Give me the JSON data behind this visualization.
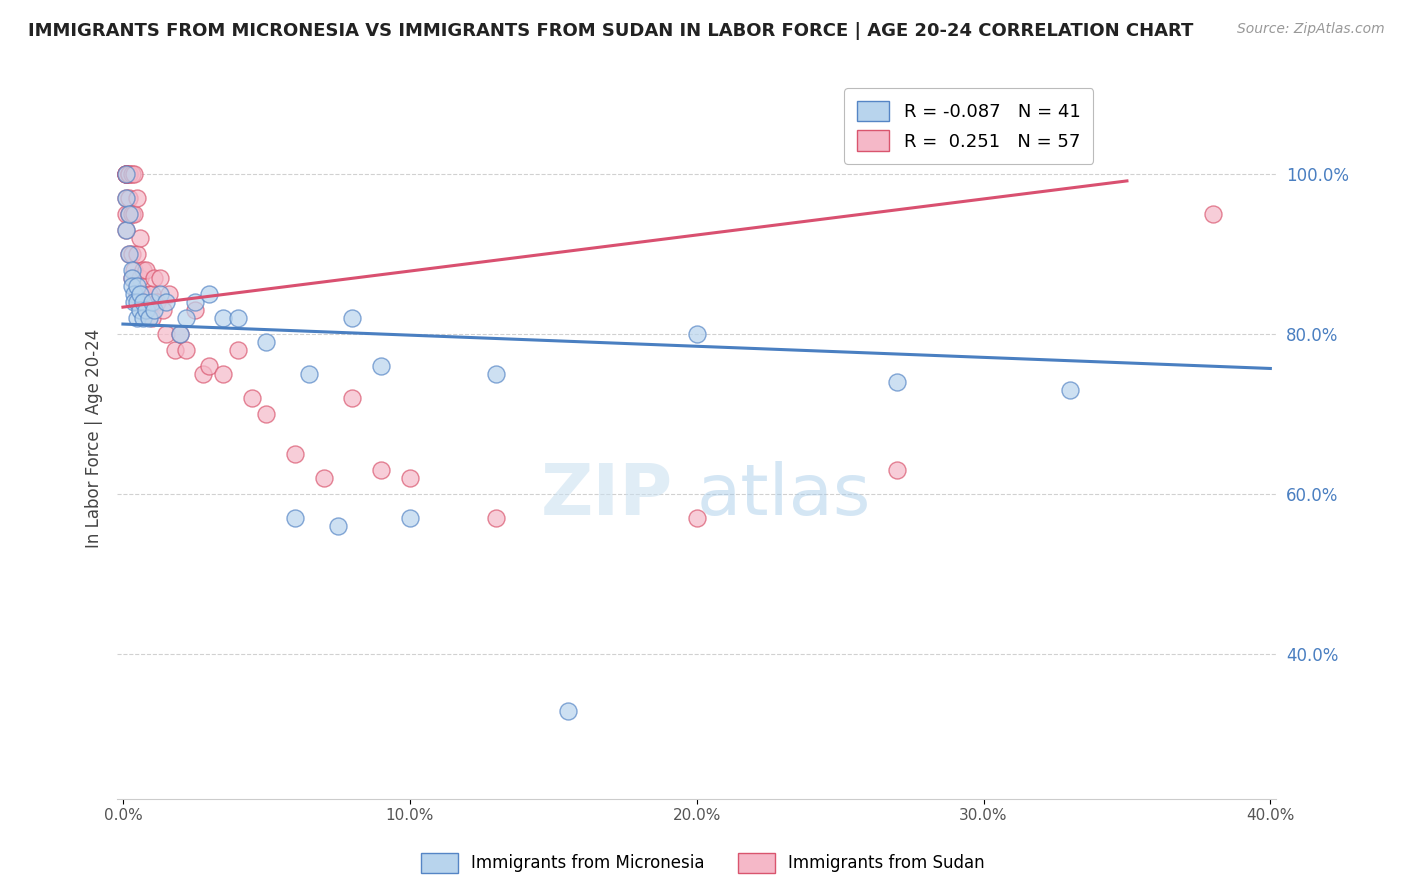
{
  "title": "IMMIGRANTS FROM MICRONESIA VS IMMIGRANTS FROM SUDAN IN LABOR FORCE | AGE 20-24 CORRELATION CHART",
  "source": "Source: ZipAtlas.com",
  "ylabel": "In Labor Force | Age 20-24",
  "xlim": [
    -0.002,
    0.402
  ],
  "ylim": [
    0.22,
    1.12
  ],
  "xtick_labels": [
    "0.0%",
    "10.0%",
    "20.0%",
    "30.0%",
    "40.0%"
  ],
  "xtick_vals": [
    0.0,
    0.1,
    0.2,
    0.3,
    0.4
  ],
  "ytick_labels": [
    "40.0%",
    "60.0%",
    "80.0%",
    "100.0%"
  ],
  "ytick_vals": [
    0.4,
    0.6,
    0.8,
    1.0
  ],
  "micronesia_color": "#b8d4ed",
  "sudan_color": "#f5b8c8",
  "micronesia_edge": "#5585c5",
  "sudan_edge": "#d9556e",
  "trend_micronesia_color": "#4a7fc1",
  "trend_sudan_color": "#d95070",
  "R_micronesia": -0.087,
  "N_micronesia": 41,
  "R_sudan": 0.251,
  "N_sudan": 57,
  "legend_label_micronesia": "Immigrants from Micronesia",
  "legend_label_sudan": "Immigrants from Sudan",
  "watermark_zip": "ZIP",
  "watermark_atlas": "atlas",
  "micronesia_x": [
    0.001,
    0.001,
    0.001,
    0.002,
    0.002,
    0.003,
    0.003,
    0.003,
    0.004,
    0.004,
    0.005,
    0.005,
    0.005,
    0.006,
    0.006,
    0.007,
    0.007,
    0.008,
    0.009,
    0.01,
    0.011,
    0.013,
    0.015,
    0.02,
    0.022,
    0.025,
    0.03,
    0.035,
    0.04,
    0.05,
    0.06,
    0.065,
    0.075,
    0.08,
    0.09,
    0.1,
    0.13,
    0.155,
    0.2,
    0.27,
    0.33
  ],
  "micronesia_y": [
    1.0,
    0.97,
    0.93,
    0.95,
    0.9,
    0.88,
    0.87,
    0.86,
    0.85,
    0.84,
    0.86,
    0.84,
    0.82,
    0.85,
    0.83,
    0.84,
    0.82,
    0.83,
    0.82,
    0.84,
    0.83,
    0.85,
    0.84,
    0.8,
    0.82,
    0.84,
    0.85,
    0.82,
    0.82,
    0.79,
    0.57,
    0.75,
    0.56,
    0.82,
    0.76,
    0.57,
    0.75,
    0.33,
    0.8,
    0.74,
    0.73
  ],
  "sudan_x": [
    0.001,
    0.001,
    0.001,
    0.001,
    0.001,
    0.001,
    0.001,
    0.001,
    0.002,
    0.002,
    0.002,
    0.002,
    0.002,
    0.003,
    0.003,
    0.003,
    0.003,
    0.004,
    0.004,
    0.004,
    0.005,
    0.005,
    0.005,
    0.006,
    0.006,
    0.007,
    0.007,
    0.008,
    0.008,
    0.009,
    0.01,
    0.01,
    0.011,
    0.012,
    0.013,
    0.014,
    0.015,
    0.016,
    0.018,
    0.02,
    0.022,
    0.025,
    0.028,
    0.03,
    0.035,
    0.04,
    0.045,
    0.05,
    0.06,
    0.07,
    0.08,
    0.09,
    0.1,
    0.13,
    0.2,
    0.27,
    0.38
  ],
  "sudan_y": [
    1.0,
    1.0,
    1.0,
    1.0,
    1.0,
    0.97,
    0.95,
    0.93,
    1.0,
    1.0,
    0.97,
    0.95,
    0.9,
    1.0,
    0.95,
    0.9,
    0.87,
    1.0,
    0.95,
    0.88,
    0.97,
    0.9,
    0.85,
    0.92,
    0.87,
    0.88,
    0.85,
    0.88,
    0.83,
    0.85,
    0.85,
    0.82,
    0.87,
    0.84,
    0.87,
    0.83,
    0.8,
    0.85,
    0.78,
    0.8,
    0.78,
    0.83,
    0.75,
    0.76,
    0.75,
    0.78,
    0.72,
    0.7,
    0.65,
    0.62,
    0.72,
    0.63,
    0.62,
    0.57,
    0.57,
    0.63,
    0.95
  ]
}
